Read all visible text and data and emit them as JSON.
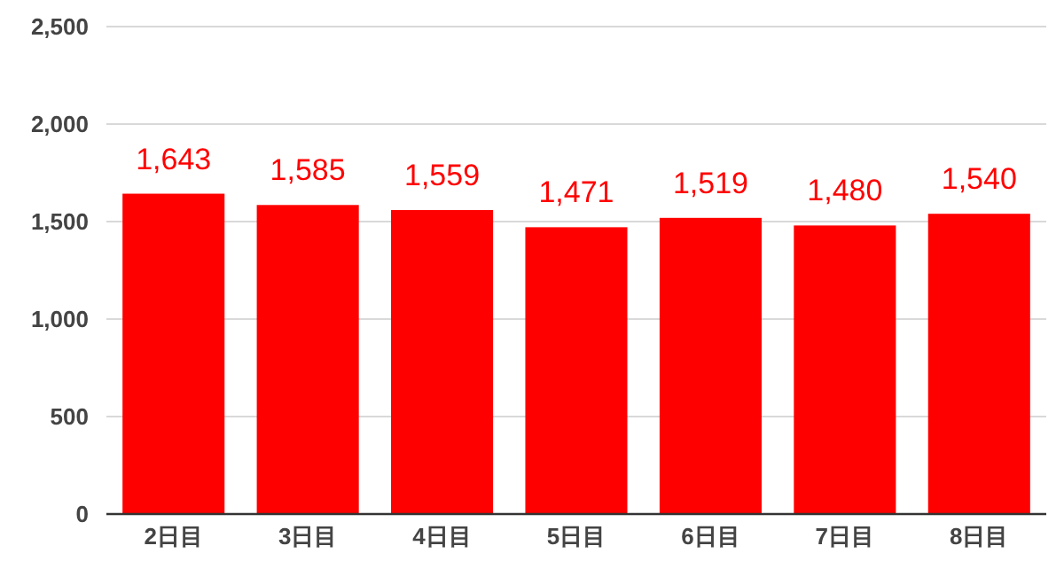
{
  "chart_data": {
    "type": "bar",
    "categories": [
      "2日目",
      "3日目",
      "4日目",
      "5日目",
      "6日目",
      "7日目",
      "8日目"
    ],
    "values": [
      1643,
      1585,
      1559,
      1471,
      1519,
      1480,
      1540
    ],
    "value_labels": [
      "1,643",
      "1,585",
      "1,559",
      "1,471",
      "1,519",
      "1,480",
      "1,540"
    ],
    "color": "#ff0000",
    "ylim": [
      0,
      2500
    ],
    "yticks": [
      {
        "value": 0,
        "label": "0"
      },
      {
        "value": 500,
        "label": "500"
      },
      {
        "value": 1000,
        "label": "1,000"
      },
      {
        "value": 1500,
        "label": "1,500"
      },
      {
        "value": 2000,
        "label": "2,000"
      },
      {
        "value": 2500,
        "label": "2,500"
      }
    ],
    "grid": "y"
  }
}
